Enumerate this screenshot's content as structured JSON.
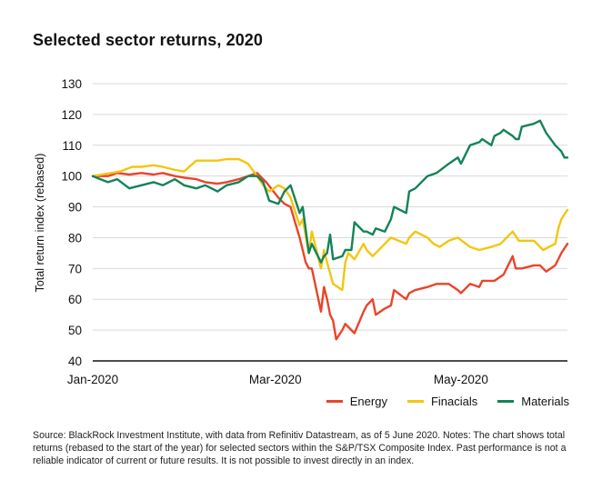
{
  "colors": {
    "Energy": "#e8452a",
    "Finacials": "#f2c60f",
    "Materials": "#138357",
    "grid": "#d9d9d9",
    "axis": "#111111"
  },
  "chart_data": {
    "type": "line",
    "title": "Selected sector returns, 2020",
    "ylabel": "Total return index (rebased)",
    "xlabel": "",
    "ylim": [
      40,
      130
    ],
    "yticks": [
      40,
      50,
      60,
      70,
      80,
      90,
      100,
      110,
      120,
      130
    ],
    "xlim": [
      "2020-01-01",
      "2020-06-05"
    ],
    "xticks": [
      {
        "date": "2020-01-01",
        "label": "Jan-2020"
      },
      {
        "date": "2020-03-01",
        "label": "Mar-2020"
      },
      {
        "date": "2020-05-01",
        "label": "May-2020"
      }
    ],
    "grid": "horizontal",
    "legend": "bottom-right",
    "series": [
      {
        "name": "Energy",
        "color": "#e8452a",
        "points": [
          [
            "2020-01-01",
            100
          ],
          [
            "2020-01-06",
            100
          ],
          [
            "2020-01-09",
            101
          ],
          [
            "2020-01-13",
            100.5
          ],
          [
            "2020-01-17",
            101
          ],
          [
            "2020-01-21",
            100.5
          ],
          [
            "2020-01-24",
            101
          ],
          [
            "2020-01-28",
            100
          ],
          [
            "2020-01-31",
            99.5
          ],
          [
            "2020-02-04",
            99
          ],
          [
            "2020-02-07",
            98
          ],
          [
            "2020-02-11",
            97.5
          ],
          [
            "2020-02-14",
            98
          ],
          [
            "2020-02-18",
            99
          ],
          [
            "2020-02-21",
            100
          ],
          [
            "2020-02-24",
            101
          ],
          [
            "2020-02-27",
            98
          ],
          [
            "2020-03-02",
            93
          ],
          [
            "2020-03-04",
            91
          ],
          [
            "2020-03-06",
            90
          ],
          [
            "2020-03-09",
            80
          ],
          [
            "2020-03-11",
            72
          ],
          [
            "2020-03-12",
            70
          ],
          [
            "2020-03-13",
            70
          ],
          [
            "2020-03-16",
            56
          ],
          [
            "2020-03-17",
            64
          ],
          [
            "2020-03-18",
            60
          ],
          [
            "2020-03-19",
            55
          ],
          [
            "2020-03-20",
            53
          ],
          [
            "2020-03-21",
            47
          ],
          [
            "2020-03-23",
            50
          ],
          [
            "2020-03-24",
            52
          ],
          [
            "2020-03-26",
            50
          ],
          [
            "2020-03-27",
            49
          ],
          [
            "2020-03-30",
            56
          ],
          [
            "2020-03-31",
            58
          ],
          [
            "2020-04-02",
            60
          ],
          [
            "2020-04-03",
            55
          ],
          [
            "2020-04-06",
            57
          ],
          [
            "2020-04-08",
            58
          ],
          [
            "2020-04-09",
            63
          ],
          [
            "2020-04-13",
            60
          ],
          [
            "2020-04-14",
            62
          ],
          [
            "2020-04-16",
            63
          ],
          [
            "2020-04-20",
            64
          ],
          [
            "2020-04-23",
            65
          ],
          [
            "2020-04-27",
            65
          ],
          [
            "2020-04-30",
            63
          ],
          [
            "2020-05-01",
            62
          ],
          [
            "2020-05-04",
            65
          ],
          [
            "2020-05-07",
            64
          ],
          [
            "2020-05-08",
            66
          ],
          [
            "2020-05-12",
            66
          ],
          [
            "2020-05-15",
            68
          ],
          [
            "2020-05-18",
            74
          ],
          [
            "2020-05-19",
            70
          ],
          [
            "2020-05-21",
            70
          ],
          [
            "2020-05-25",
            71
          ],
          [
            "2020-05-27",
            71
          ],
          [
            "2020-05-28",
            70
          ],
          [
            "2020-05-29",
            69
          ],
          [
            "2020-06-01",
            71
          ],
          [
            "2020-06-03",
            75
          ],
          [
            "2020-06-05",
            78
          ]
        ]
      },
      {
        "name": "Finacials",
        "color": "#f2c60f",
        "points": [
          [
            "2020-01-01",
            100
          ],
          [
            "2020-01-07",
            101
          ],
          [
            "2020-01-10",
            101.5
          ],
          [
            "2020-01-14",
            103
          ],
          [
            "2020-01-17",
            103
          ],
          [
            "2020-01-21",
            103.5
          ],
          [
            "2020-01-24",
            103
          ],
          [
            "2020-01-28",
            102
          ],
          [
            "2020-01-31",
            101.5
          ],
          [
            "2020-02-04",
            105
          ],
          [
            "2020-02-07",
            105
          ],
          [
            "2020-02-11",
            105
          ],
          [
            "2020-02-14",
            105.5
          ],
          [
            "2020-02-18",
            105.5
          ],
          [
            "2020-02-21",
            104
          ],
          [
            "2020-02-24",
            100
          ],
          [
            "2020-02-26",
            97
          ],
          [
            "2020-02-28",
            95
          ],
          [
            "2020-03-02",
            97
          ],
          [
            "2020-03-04",
            96
          ],
          [
            "2020-03-06",
            93
          ],
          [
            "2020-03-09",
            84
          ],
          [
            "2020-03-10",
            86
          ],
          [
            "2020-03-12",
            75
          ],
          [
            "2020-03-13",
            82
          ],
          [
            "2020-03-16",
            70
          ],
          [
            "2020-03-17",
            76
          ],
          [
            "2020-03-18",
            72
          ],
          [
            "2020-03-20",
            65
          ],
          [
            "2020-03-23",
            63
          ],
          [
            "2020-03-24",
            72
          ],
          [
            "2020-03-25",
            75
          ],
          [
            "2020-03-27",
            73
          ],
          [
            "2020-03-30",
            78
          ],
          [
            "2020-03-31",
            76
          ],
          [
            "2020-04-02",
            74
          ],
          [
            "2020-04-06",
            78
          ],
          [
            "2020-04-08",
            80
          ],
          [
            "2020-04-13",
            78
          ],
          [
            "2020-04-14",
            80
          ],
          [
            "2020-04-16",
            82
          ],
          [
            "2020-04-20",
            80
          ],
          [
            "2020-04-22",
            78
          ],
          [
            "2020-04-24",
            77
          ],
          [
            "2020-04-27",
            79
          ],
          [
            "2020-04-30",
            80
          ],
          [
            "2020-05-04",
            77
          ],
          [
            "2020-05-07",
            76
          ],
          [
            "2020-05-11",
            77
          ],
          [
            "2020-05-14",
            78
          ],
          [
            "2020-05-18",
            82
          ],
          [
            "2020-05-20",
            79
          ],
          [
            "2020-05-25",
            79
          ],
          [
            "2020-05-28",
            76
          ],
          [
            "2020-06-01",
            78
          ],
          [
            "2020-06-02",
            83
          ],
          [
            "2020-06-03",
            86
          ],
          [
            "2020-06-05",
            89
          ]
        ]
      },
      {
        "name": "Materials",
        "color": "#138357",
        "points": [
          [
            "2020-01-01",
            100
          ],
          [
            "2020-01-06",
            98
          ],
          [
            "2020-01-09",
            99
          ],
          [
            "2020-01-13",
            96
          ],
          [
            "2020-01-17",
            97
          ],
          [
            "2020-01-21",
            98
          ],
          [
            "2020-01-24",
            97
          ],
          [
            "2020-01-28",
            99
          ],
          [
            "2020-01-31",
            97
          ],
          [
            "2020-02-04",
            96
          ],
          [
            "2020-02-07",
            97
          ],
          [
            "2020-02-11",
            95
          ],
          [
            "2020-02-14",
            97
          ],
          [
            "2020-02-18",
            98
          ],
          [
            "2020-02-21",
            100
          ],
          [
            "2020-02-24",
            100
          ],
          [
            "2020-02-26",
            98
          ],
          [
            "2020-02-28",
            92
          ],
          [
            "2020-03-02",
            91
          ],
          [
            "2020-03-04",
            95
          ],
          [
            "2020-03-06",
            97
          ],
          [
            "2020-03-09",
            88
          ],
          [
            "2020-03-10",
            90
          ],
          [
            "2020-03-12",
            75
          ],
          [
            "2020-03-13",
            78
          ],
          [
            "2020-03-16",
            72
          ],
          [
            "2020-03-17",
            74
          ],
          [
            "2020-03-18",
            75
          ],
          [
            "2020-03-19",
            81
          ],
          [
            "2020-03-20",
            73
          ],
          [
            "2020-03-23",
            74
          ],
          [
            "2020-03-24",
            76
          ],
          [
            "2020-03-26",
            76
          ],
          [
            "2020-03-27",
            85
          ],
          [
            "2020-03-30",
            82
          ],
          [
            "2020-03-31",
            82
          ],
          [
            "2020-04-02",
            81
          ],
          [
            "2020-04-03",
            83
          ],
          [
            "2020-04-06",
            82
          ],
          [
            "2020-04-08",
            86
          ],
          [
            "2020-04-09",
            90
          ],
          [
            "2020-04-13",
            88
          ],
          [
            "2020-04-14",
            95
          ],
          [
            "2020-04-16",
            96
          ],
          [
            "2020-04-20",
            100
          ],
          [
            "2020-04-23",
            101
          ],
          [
            "2020-04-27",
            104
          ],
          [
            "2020-04-30",
            106
          ],
          [
            "2020-05-01",
            104
          ],
          [
            "2020-05-04",
            110
          ],
          [
            "2020-05-07",
            111
          ],
          [
            "2020-05-08",
            112
          ],
          [
            "2020-05-11",
            110
          ],
          [
            "2020-05-12",
            113
          ],
          [
            "2020-05-14",
            114
          ],
          [
            "2020-05-15",
            115
          ],
          [
            "2020-05-18",
            113
          ],
          [
            "2020-05-19",
            112
          ],
          [
            "2020-05-20",
            112
          ],
          [
            "2020-05-21",
            116
          ],
          [
            "2020-05-25",
            117
          ],
          [
            "2020-05-27",
            118
          ],
          [
            "2020-05-28",
            116
          ],
          [
            "2020-05-29",
            114
          ],
          [
            "2020-06-01",
            110
          ],
          [
            "2020-06-02",
            109
          ],
          [
            "2020-06-03",
            108
          ],
          [
            "2020-06-04",
            106
          ],
          [
            "2020-06-05",
            106
          ]
        ]
      }
    ]
  },
  "source": "Source: BlackRock Investment Institute, with data from Refinitiv Datastream, as of 5 June 2020. Notes: The chart shows total returns (rebased to the start of the year) for selected sectors within the S&P/TSX Composite Index. Past performance is not a reliable indicator of current or future results. It is not possible to invest directly in an index."
}
